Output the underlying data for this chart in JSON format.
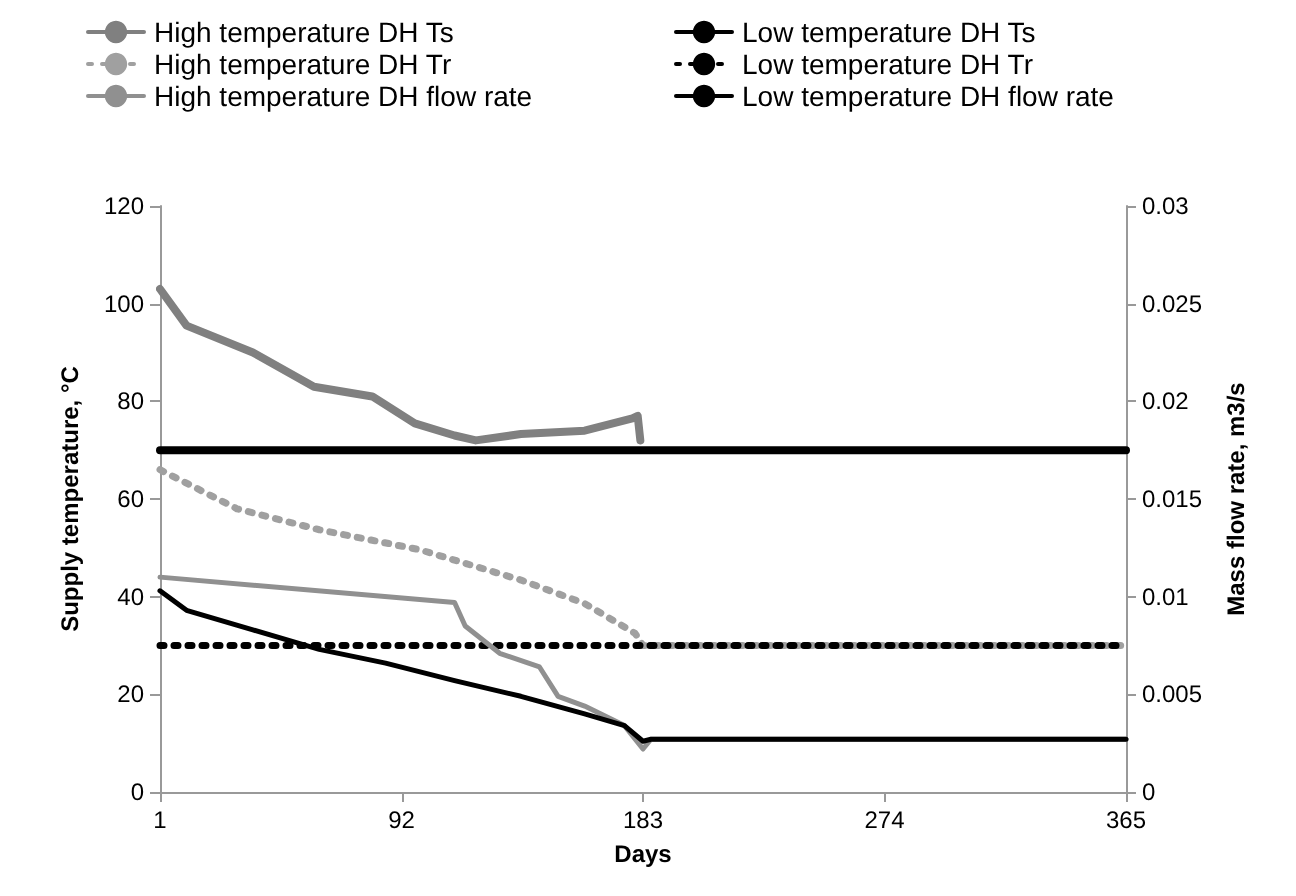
{
  "chart_data": {
    "type": "line",
    "xlabel": "Days",
    "ylabel": "Supply temperature, °C",
    "y2label": "Mass flow rate, m3/s",
    "xlim": [
      1,
      365
    ],
    "xticks": [
      1,
      92,
      183,
      274,
      365
    ],
    "ylim": [
      0,
      120
    ],
    "yticks": [
      0,
      20,
      40,
      60,
      80,
      100,
      120
    ],
    "y2lim": [
      0,
      0.03
    ],
    "y2ticks": [
      0,
      0.005,
      0.01,
      0.015,
      0.02,
      0.025,
      0.03
    ],
    "grid": false,
    "legend": "top",
    "marker": "none",
    "series": [
      {
        "name": "High temperature DH Ts",
        "color": "#808080",
        "line_style": "solid",
        "x": [
          1,
          11,
          36,
          59,
          81,
          97,
          112,
          120,
          137,
          161,
          179,
          181,
          182
        ],
        "values": [
          103,
          95.5,
          90,
          83,
          81,
          75.5,
          73,
          72,
          73.3,
          74,
          76.5,
          77,
          72
        ]
      },
      {
        "name": "Low temperature DH Ts",
        "color": "#000000",
        "line_style": "solid",
        "x": [
          1,
          365
        ],
        "values": [
          70,
          70
        ]
      },
      {
        "name": "High temperature DH Tr",
        "color": "#a0a0a0",
        "line_style": "dotted",
        "x": [
          1,
          30,
          61,
          99,
          137,
          161,
          180,
          183,
          365
        ],
        "values": [
          66,
          58,
          53.7,
          49.6,
          43.4,
          38.6,
          32.5,
          30,
          30
        ]
      },
      {
        "name": "Low temperature DH Tr",
        "color": "#000000",
        "line_style": "dotted",
        "x": [
          1,
          365
        ],
        "values": [
          30,
          30
        ]
      },
      {
        "name": "High temperature DH flow rate",
        "color": "#909090",
        "line_style": "solid",
        "axis": "y2",
        "x": [
          1,
          112,
          116,
          129,
          144,
          151,
          161,
          176,
          183,
          186,
          365
        ],
        "values": [
          0.011,
          0.0097,
          0.0085,
          0.0071,
          0.0064,
          0.0049,
          0.0044,
          0.0034,
          0.0022,
          0.0027,
          0.0027
        ]
      },
      {
        "name": "Low temperature DH flow rate",
        "color": "#000000",
        "line_style": "solid",
        "axis": "y2",
        "x": [
          1,
          11,
          36,
          61,
          86,
          112,
          137,
          161,
          176,
          183,
          186,
          365
        ],
        "values": [
          0.0103,
          0.0093,
          0.0083,
          0.0073,
          0.0066,
          0.0057,
          0.0049,
          0.004,
          0.0034,
          0.0026,
          0.0027,
          0.0027
        ]
      }
    ]
  }
}
